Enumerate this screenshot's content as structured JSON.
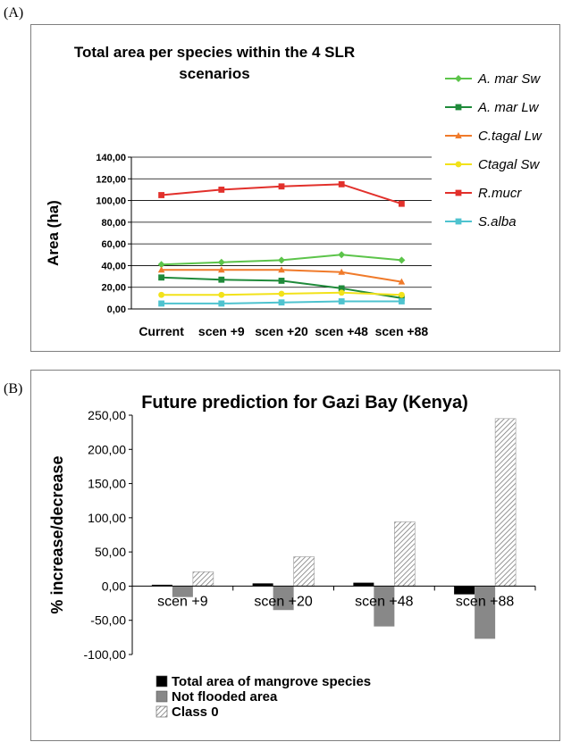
{
  "panel_a_label": "(A)",
  "panel_b_label": "(B)",
  "chart_data": [
    {
      "type": "line",
      "title": "Total area per species within the 4 SLR scenarios",
      "title_lines": [
        "Total area per species within the 4 SLR",
        "scenarios"
      ],
      "xlabel": "",
      "ylabel": "Area (ha)",
      "categories": [
        "Current",
        "scen +9",
        "scen +20",
        "scen +48",
        "scen +88"
      ],
      "ylim": [
        0,
        140
      ],
      "yticks": [
        "0,00",
        "20,00",
        "40,00",
        "60,00",
        "80,00",
        "100,00",
        "120,00",
        "140,00"
      ],
      "grid": true,
      "legend_position": "right",
      "series": [
        {
          "name": "A. mar Sw",
          "color": "#5cc44a",
          "marker": "diamond",
          "values": [
            41,
            43,
            45,
            50,
            45
          ]
        },
        {
          "name": "A. mar Lw",
          "color": "#1f8a3a",
          "marker": "square",
          "values": [
            29,
            27,
            26,
            19,
            10
          ]
        },
        {
          "name": "C.tagal Lw",
          "color": "#f07a2a",
          "marker": "triangle",
          "values": [
            36,
            36,
            36,
            34,
            25
          ]
        },
        {
          "name": "Ctagal Sw",
          "color": "#f2e21a",
          "marker": "circle",
          "values": [
            13,
            13,
            14,
            15,
            13
          ]
        },
        {
          "name": "R.mucr",
          "color": "#e2302b",
          "marker": "square",
          "values": [
            105,
            110,
            113,
            115,
            97
          ]
        },
        {
          "name": "S.alba",
          "color": "#4ec3cf",
          "marker": "square",
          "values": [
            5,
            5,
            6,
            7,
            7
          ]
        }
      ]
    },
    {
      "type": "bar",
      "title": "Future prediction for Gazi Bay (Kenya)",
      "xlabel": "",
      "ylabel": "% increase/decrease",
      "categories": [
        "scen +9",
        "scen +20",
        "scen +48",
        "scen +88"
      ],
      "ylim": [
        -100,
        250
      ],
      "yticks": [
        "-100,00",
        "-50,00",
        "0,00",
        "50,00",
        "100,00",
        "150,00",
        "200,00",
        "250,00"
      ],
      "grid": false,
      "legend_position": "bottom",
      "series": [
        {
          "name": "Total area of mangrove species",
          "color": "#000000",
          "values": [
            2,
            4,
            5,
            -12
          ]
        },
        {
          "name": "Not flooded area",
          "color": "#888888",
          "values": [
            -16,
            -35,
            -59,
            -77
          ]
        },
        {
          "name": "Class 0",
          "color": "hatched",
          "values": [
            21,
            43,
            94,
            245
          ]
        }
      ]
    }
  ]
}
